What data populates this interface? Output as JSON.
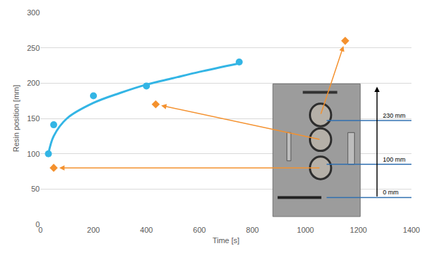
{
  "chart_data": {
    "type": "scatter",
    "x_label": "Time [s]",
    "y_label": "Resin position [mm]",
    "xlim": [
      0,
      1400
    ],
    "xticks": [
      0,
      200,
      400,
      600,
      800,
      1000,
      1200,
      1400
    ],
    "ylim": [
      0,
      300
    ],
    "yticks": [
      0,
      50,
      100,
      150,
      200,
      250,
      300
    ],
    "grid": true,
    "series": [
      {
        "type": "scatter",
        "color": "#33b5e5",
        "marker": "circle",
        "x": [
          30,
          50,
          200,
          400,
          750
        ],
        "values": [
          100,
          141,
          182,
          196,
          230
        ]
      },
      {
        "type": "line",
        "color": "#33b5e5",
        "line_style": "solid",
        "x": [
          30,
          50,
          100,
          200,
          300,
          400,
          500,
          600,
          750
        ],
        "values": [
          100,
          125,
          150,
          172,
          186,
          198,
          207,
          216,
          228
        ]
      },
      {
        "type": "scatter",
        "color": "#f4912e",
        "marker": "diamond",
        "x": [
          50,
          435,
          1150
        ],
        "values": [
          80,
          170,
          260
        ]
      }
    ],
    "annotations": [
      "230 mm",
      "100 mm",
      "0 mm"
    ]
  }
}
